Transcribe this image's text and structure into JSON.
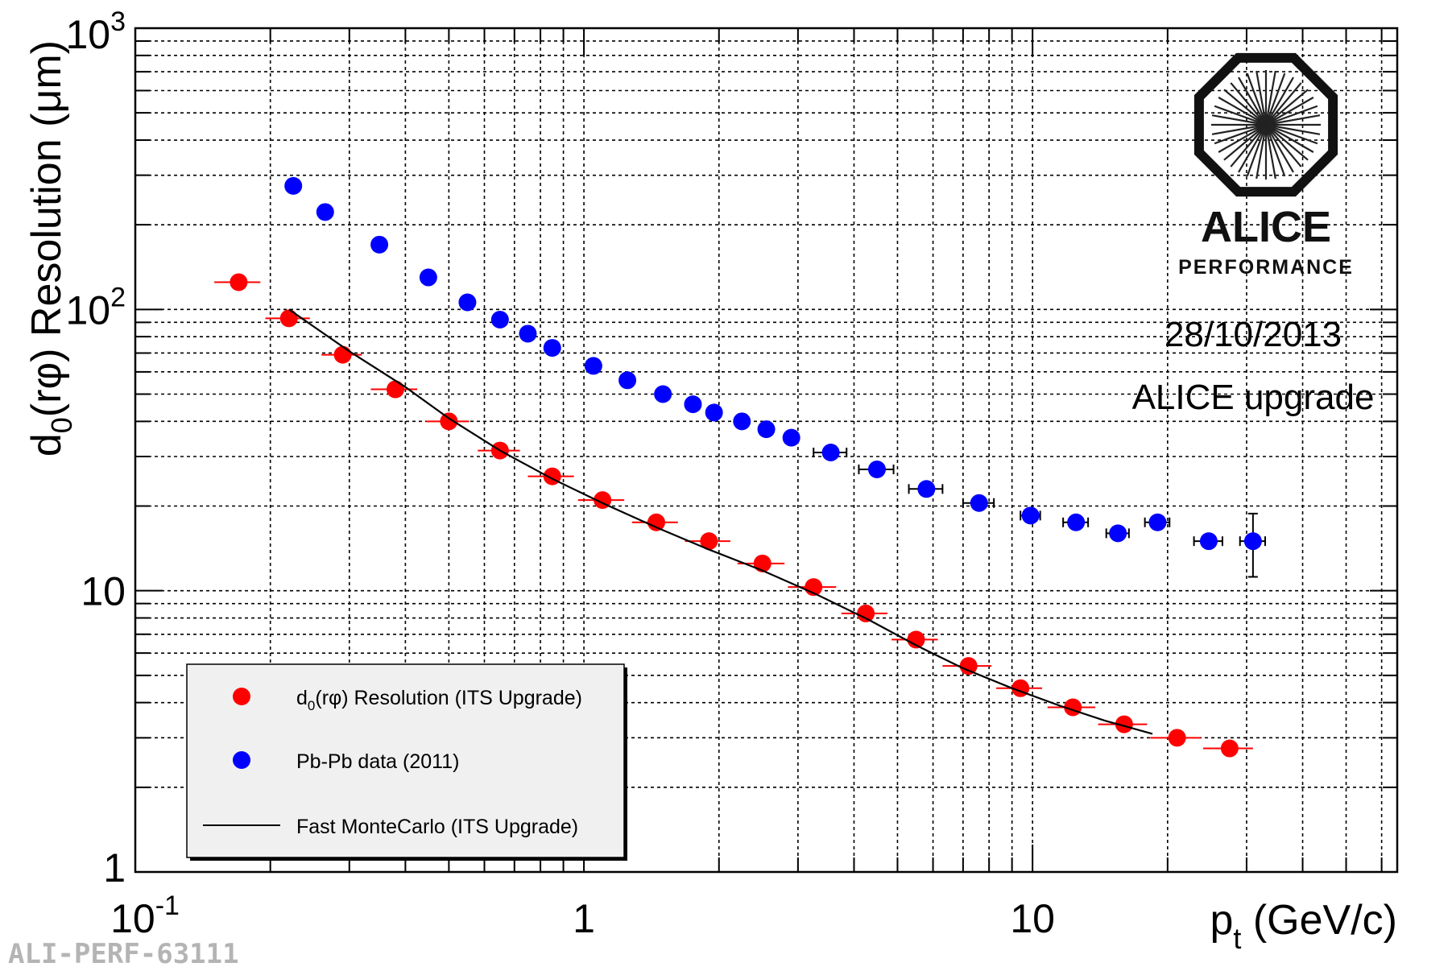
{
  "chart_data": {
    "type": "scatter",
    "x_scale": "log",
    "y_scale": "log",
    "xlim": [
      0.1,
      65
    ],
    "ylim": [
      1,
      1000
    ],
    "grid": true,
    "legend_position": "bottom-left",
    "xlabel": {
      "main": "p",
      "sub": "t",
      "rest": " (GeV/c)"
    },
    "ylabel": {
      "pre": "d",
      "sub": "0",
      "post": "(rφ) Resolution  (μm)"
    },
    "x_ticks": [
      {
        "value": 0.1,
        "base": "10",
        "exp": "-1"
      },
      {
        "value": 1,
        "base": "1",
        "exp": ""
      },
      {
        "value": 10,
        "base": "10",
        "exp": ""
      }
    ],
    "y_ticks": [
      {
        "value": 1,
        "base": "1",
        "exp": ""
      },
      {
        "value": 10,
        "base": "10",
        "exp": ""
      },
      {
        "value": 100,
        "base": "10",
        "exp": "2"
      },
      {
        "value": 1000,
        "base": "10",
        "exp": "3"
      }
    ],
    "annotations": [
      "28/10/2013",
      "ALICE upgrade"
    ],
    "series": [
      {
        "name": "d0(rφ) Resolution  (ITS Upgrade)",
        "legend_label": {
          "pre": "d",
          "sub": "0",
          "post": "(rφ) Resolution  (ITS Upgrade)"
        },
        "color": "#ff0000",
        "marker": "circle",
        "x": [
          0.17,
          0.22,
          0.29,
          0.38,
          0.5,
          0.65,
          0.85,
          1.1,
          1.45,
          1.9,
          2.5,
          3.25,
          4.25,
          5.5,
          7.2,
          9.4,
          12.3,
          16.0,
          21.0,
          27.5
        ],
        "y": [
          125,
          93,
          69,
          52,
          40,
          31.5,
          25.5,
          21,
          17.5,
          15,
          12.5,
          10.3,
          8.3,
          6.7,
          5.4,
          4.5,
          3.85,
          3.35,
          3.0,
          2.75
        ],
        "x_err": [
          0.02,
          0.025,
          0.03,
          0.045,
          0.055,
          0.07,
          0.1,
          0.13,
          0.17,
          0.22,
          0.3,
          0.4,
          0.5,
          0.65,
          0.9,
          1.1,
          1.5,
          2.0,
          2.7,
          3.5
        ]
      },
      {
        "name": "Pb-Pb data  (2011)",
        "legend_label": {
          "pre": "Pb-Pb data  (2011)",
          "sub": "",
          "post": ""
        },
        "color": "#0000ff",
        "marker": "circle",
        "x": [
          0.225,
          0.265,
          0.35,
          0.45,
          0.55,
          0.65,
          0.75,
          0.85,
          1.05,
          1.25,
          1.5,
          1.75,
          1.95,
          2.25,
          2.55,
          2.9,
          3.55,
          4.5,
          5.8,
          7.6,
          9.9,
          12.5,
          15.5,
          19.0,
          24.7,
          31.0
        ],
        "y": [
          275,
          222,
          170,
          130,
          106,
          92,
          82,
          73,
          63,
          56,
          50,
          46,
          43,
          40,
          37.5,
          35,
          31,
          27,
          23,
          20.5,
          18.5,
          17.5,
          16,
          17.5,
          15,
          15
        ],
        "x_err": [
          0,
          0,
          0,
          0,
          0,
          0,
          0,
          0,
          0,
          0,
          0,
          0,
          0,
          0,
          0,
          0,
          0.3,
          0.4,
          0.5,
          0.6,
          0.5,
          0.8,
          0.9,
          1.2,
          1.8,
          2.0
        ],
        "y_err_low": [
          0,
          0,
          0,
          0,
          0,
          0,
          0,
          0,
          0,
          0,
          0,
          0,
          0,
          0,
          0,
          0,
          0,
          0,
          0,
          0,
          0,
          0,
          0,
          0,
          0,
          3.8
        ],
        "y_err_high": [
          0,
          0,
          0,
          0,
          0,
          0,
          0,
          0,
          0,
          0,
          0,
          0,
          0,
          0,
          0,
          0,
          0,
          0,
          0,
          0,
          0,
          0,
          0,
          0,
          0,
          3.8
        ]
      },
      {
        "name": "Fast MonteCarlo (ITS Upgrade)",
        "legend_label": {
          "pre": "Fast MonteCarlo (ITS Upgrade)",
          "sub": "",
          "post": ""
        },
        "color": "#000000",
        "marker": "line",
        "x": [
          0.22,
          0.3,
          0.4,
          0.5,
          0.65,
          0.85,
          1.1,
          1.45,
          1.9,
          2.5,
          3.3,
          4.3,
          5.5,
          7.0,
          9.0,
          11.5,
          14.5,
          18.5
        ],
        "y": [
          100,
          71,
          53,
          41,
          31.5,
          25,
          20.5,
          16.8,
          14,
          11.8,
          9.7,
          7.9,
          6.4,
          5.3,
          4.5,
          3.9,
          3.45,
          3.1
        ]
      }
    ]
  },
  "logo": {
    "line1": "ALICE",
    "line2": "PERFORMANCE"
  },
  "figure_id": "ALI-PERF-63111"
}
